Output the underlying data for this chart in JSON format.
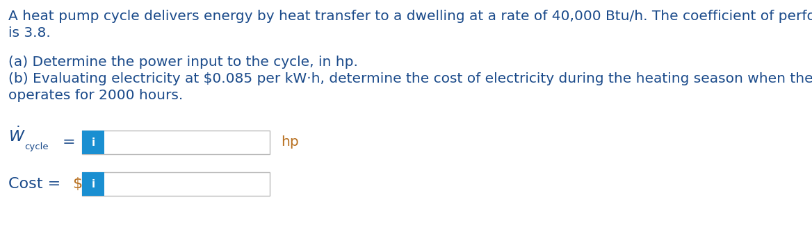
{
  "title_line1": "A heat pump cycle delivers energy by heat transfer to a dwelling at a rate of 40,000 Btu/h. The coefficient of performance of the cycle",
  "title_line2": "is 3.8.",
  "part_a": "(a) Determine the power input to the cycle, in hp.",
  "part_b": "(b) Evaluating electricity at $0.085 per kW·h, determine the cost of electricity during the heating season when the heat pump",
  "part_b2": "operates for 2000 hours.",
  "unit1": "hp",
  "dollar_sign": "$",
  "text_color": "#1a4a8a",
  "label_color": "#1a4a8a",
  "unit_color": "#b87020",
  "input_box_color": "#ffffff",
  "input_box_border": "#bbbbbb",
  "info_btn_color": "#1a8fd1",
  "info_btn_text": "i",
  "background_color": "#ffffff",
  "font_size_body": 14.5
}
